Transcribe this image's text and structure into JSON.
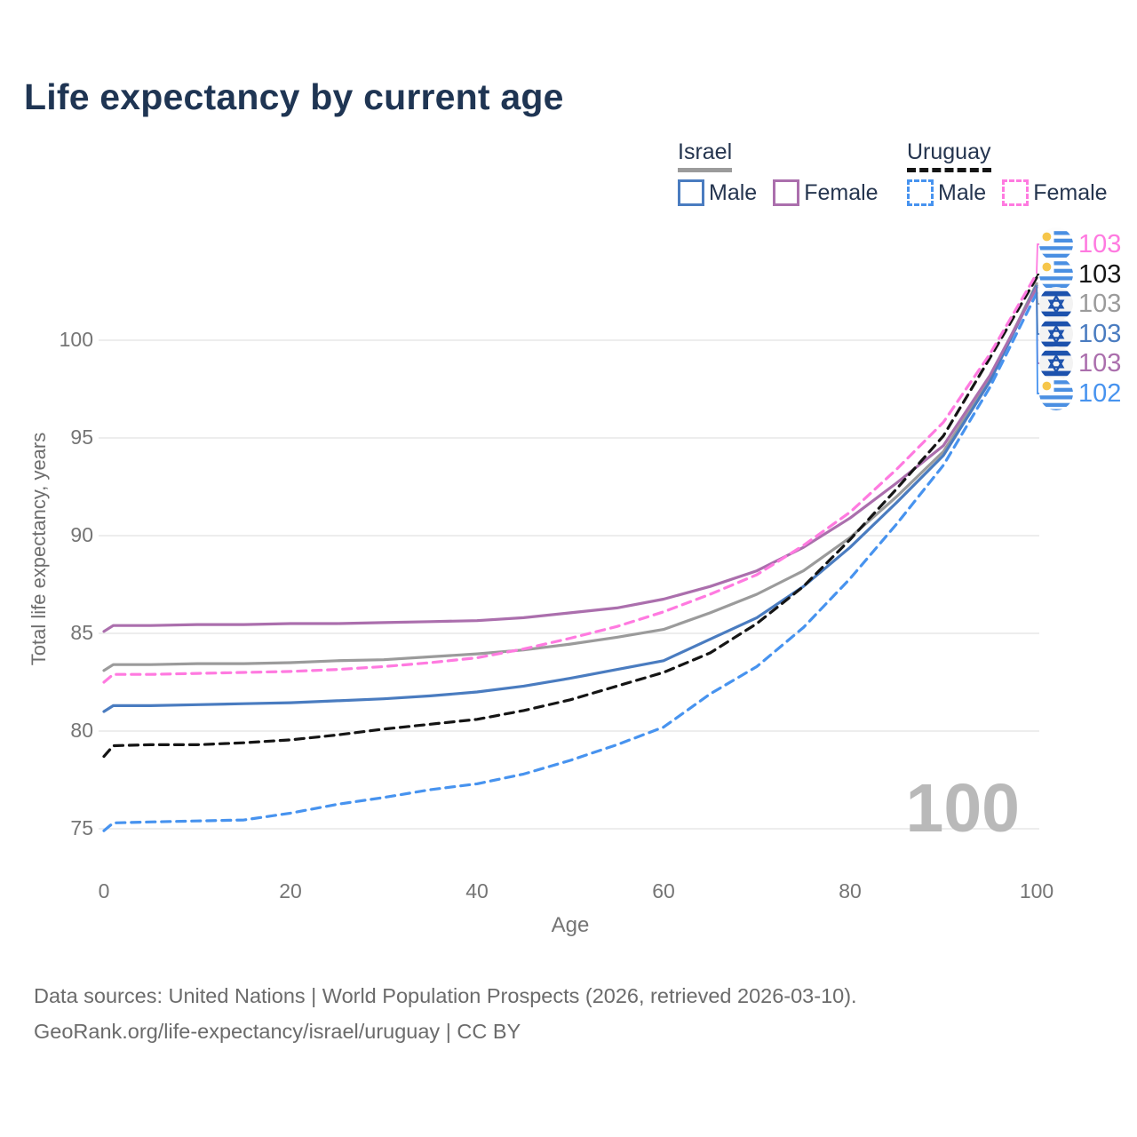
{
  "title": "Life expectancy by current age",
  "legend": {
    "groups": [
      {
        "country": "Israel",
        "items": [
          {
            "label": "Male"
          },
          {
            "label": "Female"
          }
        ]
      },
      {
        "country": "Uruguay",
        "items": [
          {
            "label": "Male"
          },
          {
            "label": "Female"
          }
        ]
      }
    ]
  },
  "colors": {
    "israel_male": "#4a7cc0",
    "israel_female": "#ab6fad",
    "israel_total": "#9b9b9b",
    "uruguay_male": "#4793ef",
    "uruguay_female": "#ff7ae0",
    "uruguay_total": "#151515",
    "gridline": "#e7e7e7",
    "axis_text": "#757575",
    "watermark": "#b9b9b9",
    "title_text": "#1f3553"
  },
  "chart_data": {
    "type": "line",
    "title": "Life expectancy by current age",
    "xlabel": "Age",
    "ylabel": "Total life expectancy, years",
    "grid": "horizontal-only",
    "xlim": [
      0,
      100
    ],
    "ylim": [
      75,
      100
    ],
    "xticks": [
      0,
      20,
      40,
      60,
      80,
      100
    ],
    "yticks": [
      100,
      95,
      90,
      85,
      80,
      75
    ],
    "x": [
      0,
      1,
      5,
      10,
      15,
      20,
      25,
      30,
      35,
      40,
      45,
      50,
      55,
      60,
      65,
      70,
      75,
      80,
      85,
      90,
      95,
      100
    ],
    "series": [
      {
        "name": "Israel Total",
        "country": "Israel",
        "sex": "Both",
        "style": "solid",
        "color_key": "israel_total",
        "label_row": 2,
        "end_label": "103",
        "values": [
          83.1,
          83.4,
          83.4,
          83.45,
          83.45,
          83.5,
          83.6,
          83.65,
          83.8,
          83.95,
          84.15,
          84.45,
          84.8,
          85.2,
          86.05,
          87.0,
          88.2,
          89.9,
          92.0,
          94.3,
          98.0,
          102.9
        ]
      },
      {
        "name": "Israel Male",
        "country": "Israel",
        "sex": "Male",
        "style": "solid",
        "color_key": "israel_male",
        "label_row": 3,
        "end_label": "103",
        "values": [
          81.0,
          81.3,
          81.3,
          81.35,
          81.4,
          81.45,
          81.55,
          81.65,
          81.8,
          82.0,
          82.3,
          82.7,
          83.15,
          83.6,
          84.7,
          85.8,
          87.4,
          89.4,
          91.7,
          94.1,
          97.9,
          102.8
        ]
      },
      {
        "name": "Israel Female",
        "country": "Israel",
        "sex": "Female",
        "style": "solid",
        "color_key": "israel_female",
        "label_row": 4,
        "end_label": "103",
        "values": [
          85.1,
          85.4,
          85.4,
          85.45,
          85.45,
          85.5,
          85.5,
          85.55,
          85.6,
          85.65,
          85.8,
          86.05,
          86.3,
          86.75,
          87.4,
          88.2,
          89.4,
          90.9,
          92.7,
          94.6,
          98.2,
          102.7
        ]
      },
      {
        "name": "Uruguay Total",
        "country": "Uruguay",
        "sex": "Both",
        "style": "dashed",
        "color_key": "uruguay_total",
        "label_row": 1,
        "end_label": "103",
        "values": [
          78.7,
          79.25,
          79.3,
          79.3,
          79.4,
          79.55,
          79.8,
          80.1,
          80.35,
          80.6,
          81.05,
          81.6,
          82.3,
          83.0,
          84.0,
          85.5,
          87.4,
          89.8,
          92.4,
          95.1,
          99.1,
          103.2
        ]
      },
      {
        "name": "Uruguay Female",
        "country": "Uruguay",
        "sex": "Female",
        "style": "dashed",
        "color_key": "uruguay_female",
        "label_row": 0,
        "end_label": "103",
        "values": [
          82.5,
          82.9,
          82.9,
          82.95,
          83.0,
          83.05,
          83.15,
          83.3,
          83.5,
          83.75,
          84.2,
          84.75,
          85.35,
          86.1,
          87.0,
          88.0,
          89.5,
          91.2,
          93.4,
          95.8,
          99.3,
          103.4
        ]
      },
      {
        "name": "Uruguay Male",
        "country": "Uruguay",
        "sex": "Male",
        "style": "dashed",
        "color_key": "uruguay_male",
        "label_row": 5,
        "end_label": "102",
        "values": [
          74.9,
          75.3,
          75.35,
          75.4,
          75.45,
          75.8,
          76.25,
          76.6,
          77.0,
          77.3,
          77.8,
          78.5,
          79.3,
          80.2,
          81.9,
          83.3,
          85.3,
          87.8,
          90.6,
          93.6,
          97.6,
          102.4
        ]
      }
    ]
  },
  "end_labels": [
    {
      "value": "103",
      "flag": "uruguay",
      "color_key": "uruguay_female"
    },
    {
      "value": "103",
      "flag": "uruguay",
      "color_key": "uruguay_total"
    },
    {
      "value": "103",
      "flag": "israel",
      "color_key": "israel_total"
    },
    {
      "value": "103",
      "flag": "israel",
      "color_key": "israel_male"
    },
    {
      "value": "103",
      "flag": "israel",
      "color_key": "israel_female"
    },
    {
      "value": "102",
      "flag": "uruguay",
      "color_key": "uruguay_male"
    }
  ],
  "watermark": "100",
  "footer": {
    "line1": "Data sources: United Nations | World Population Prospects (2026, retrieved 2026-03-10).",
    "line2": "GeoRank.org/life-expectancy/israel/uruguay | CC BY"
  }
}
